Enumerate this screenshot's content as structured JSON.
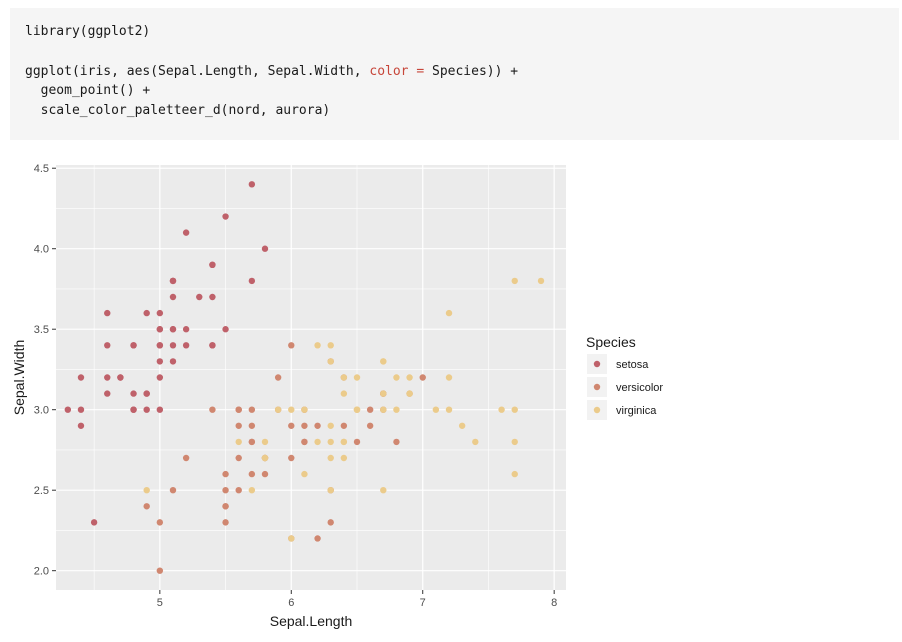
{
  "code": {
    "line1": "library(ggplot2)",
    "line3_pre": "ggplot(iris, aes(Sepal.Length, Sepal.Width, ",
    "line3_color": "color = ",
    "line3_post": "Species)) +",
    "line4": "  geom_point() +",
    "line5": "  scale_color_paletteer_d(nord, aurora)"
  },
  "chart_data": {
    "type": "scatter",
    "xlabel": "Sepal.Length",
    "ylabel": "Sepal.Width",
    "xlim": [
      4.21,
      8.09
    ],
    "ylim": [
      1.88,
      4.52
    ],
    "x_ticks": [
      5,
      6,
      7,
      8
    ],
    "x_tick_labels": [
      "5",
      "6",
      "7",
      "8"
    ],
    "y_ticks": [
      2.0,
      2.5,
      3.0,
      3.5,
      4.0,
      4.5
    ],
    "y_tick_labels": [
      "2.0",
      "2.5",
      "3.0",
      "3.5",
      "4.0",
      "4.5"
    ],
    "grid": true,
    "background": "#ebebeb",
    "legend": {
      "title": "Species",
      "position": "right"
    },
    "series": [
      {
        "name": "setosa",
        "color": "#bf616a",
        "points": [
          [
            5.1,
            3.5
          ],
          [
            4.9,
            3.0
          ],
          [
            4.7,
            3.2
          ],
          [
            4.6,
            3.1
          ],
          [
            5.0,
            3.6
          ],
          [
            5.4,
            3.9
          ],
          [
            4.6,
            3.4
          ],
          [
            5.0,
            3.4
          ],
          [
            4.4,
            2.9
          ],
          [
            4.9,
            3.1
          ],
          [
            5.4,
            3.7
          ],
          [
            4.8,
            3.4
          ],
          [
            4.8,
            3.0
          ],
          [
            4.3,
            3.0
          ],
          [
            5.8,
            4.0
          ],
          [
            5.7,
            4.4
          ],
          [
            5.4,
            3.9
          ],
          [
            5.1,
            3.5
          ],
          [
            5.7,
            3.8
          ],
          [
            5.1,
            3.8
          ],
          [
            5.4,
            3.4
          ],
          [
            5.1,
            3.7
          ],
          [
            4.6,
            3.6
          ],
          [
            5.1,
            3.3
          ],
          [
            4.8,
            3.4
          ],
          [
            5.0,
            3.0
          ],
          [
            5.0,
            3.4
          ],
          [
            5.2,
            3.5
          ],
          [
            5.2,
            3.4
          ],
          [
            4.7,
            3.2
          ],
          [
            4.8,
            3.1
          ],
          [
            5.4,
            3.4
          ],
          [
            5.2,
            4.1
          ],
          [
            5.5,
            4.2
          ],
          [
            4.9,
            3.1
          ],
          [
            5.0,
            3.2
          ],
          [
            5.5,
            3.5
          ],
          [
            4.9,
            3.6
          ],
          [
            4.4,
            3.0
          ],
          [
            5.1,
            3.4
          ],
          [
            5.0,
            3.5
          ],
          [
            4.5,
            2.3
          ],
          [
            4.4,
            3.2
          ],
          [
            5.0,
            3.5
          ],
          [
            5.1,
            3.8
          ],
          [
            4.8,
            3.0
          ],
          [
            5.1,
            3.8
          ],
          [
            4.6,
            3.2
          ],
          [
            5.3,
            3.7
          ],
          [
            5.0,
            3.3
          ]
        ]
      },
      {
        "name": "versicolor",
        "color": "#d08770",
        "points": [
          [
            7.0,
            3.2
          ],
          [
            6.4,
            3.2
          ],
          [
            6.9,
            3.1
          ],
          [
            5.5,
            2.3
          ],
          [
            6.5,
            2.8
          ],
          [
            5.7,
            2.8
          ],
          [
            6.3,
            3.3
          ],
          [
            4.9,
            2.4
          ],
          [
            6.6,
            2.9
          ],
          [
            5.2,
            2.7
          ],
          [
            5.0,
            2.0
          ],
          [
            5.9,
            3.0
          ],
          [
            6.0,
            2.2
          ],
          [
            6.1,
            2.9
          ],
          [
            5.6,
            2.9
          ],
          [
            6.7,
            3.1
          ],
          [
            5.6,
            3.0
          ],
          [
            5.8,
            2.7
          ],
          [
            6.2,
            2.2
          ],
          [
            5.6,
            2.5
          ],
          [
            5.9,
            3.2
          ],
          [
            6.1,
            2.8
          ],
          [
            6.3,
            2.5
          ],
          [
            6.1,
            2.8
          ],
          [
            6.4,
            2.9
          ],
          [
            6.6,
            3.0
          ],
          [
            6.8,
            2.8
          ],
          [
            6.7,
            3.0
          ],
          [
            6.0,
            2.9
          ],
          [
            5.7,
            2.6
          ],
          [
            5.5,
            2.4
          ],
          [
            5.5,
            2.4
          ],
          [
            5.8,
            2.7
          ],
          [
            6.0,
            2.7
          ],
          [
            5.4,
            3.0
          ],
          [
            6.0,
            3.4
          ],
          [
            6.7,
            3.1
          ],
          [
            6.3,
            2.3
          ],
          [
            5.6,
            3.0
          ],
          [
            5.5,
            2.5
          ],
          [
            5.5,
            2.6
          ],
          [
            6.1,
            3.0
          ],
          [
            5.8,
            2.6
          ],
          [
            5.0,
            2.3
          ],
          [
            5.6,
            2.7
          ],
          [
            5.7,
            3.0
          ],
          [
            5.7,
            2.9
          ],
          [
            6.2,
            2.9
          ],
          [
            5.1,
            2.5
          ],
          [
            5.7,
            2.8
          ]
        ]
      },
      {
        "name": "virginica",
        "color": "#ebcb8b",
        "points": [
          [
            6.3,
            3.3
          ],
          [
            5.8,
            2.7
          ],
          [
            7.1,
            3.0
          ],
          [
            6.3,
            2.9
          ],
          [
            6.5,
            3.0
          ],
          [
            7.6,
            3.0
          ],
          [
            4.9,
            2.5
          ],
          [
            7.3,
            2.9
          ],
          [
            6.7,
            2.5
          ],
          [
            7.2,
            3.6
          ],
          [
            6.5,
            3.2
          ],
          [
            6.4,
            2.7
          ],
          [
            6.8,
            3.0
          ],
          [
            5.7,
            2.5
          ],
          [
            5.8,
            2.8
          ],
          [
            6.4,
            3.2
          ],
          [
            6.5,
            3.0
          ],
          [
            7.7,
            3.8
          ],
          [
            7.7,
            2.6
          ],
          [
            6.0,
            2.2
          ],
          [
            6.9,
            3.2
          ],
          [
            5.6,
            2.8
          ],
          [
            7.7,
            2.8
          ],
          [
            6.3,
            2.7
          ],
          [
            6.7,
            3.3
          ],
          [
            7.2,
            3.2
          ],
          [
            6.2,
            2.8
          ],
          [
            6.1,
            3.0
          ],
          [
            6.4,
            2.8
          ],
          [
            7.2,
            3.0
          ],
          [
            7.4,
            2.8
          ],
          [
            7.9,
            3.8
          ],
          [
            6.4,
            2.8
          ],
          [
            6.3,
            2.8
          ],
          [
            6.1,
            2.6
          ],
          [
            7.7,
            3.0
          ],
          [
            6.3,
            3.4
          ],
          [
            6.4,
            3.1
          ],
          [
            6.0,
            3.0
          ],
          [
            6.9,
            3.1
          ],
          [
            6.7,
            3.1
          ],
          [
            6.9,
            3.1
          ],
          [
            5.8,
            2.7
          ],
          [
            6.8,
            3.2
          ],
          [
            6.7,
            3.3
          ],
          [
            6.7,
            3.0
          ],
          [
            6.3,
            2.5
          ],
          [
            6.5,
            3.0
          ],
          [
            6.2,
            3.4
          ],
          [
            5.9,
            3.0
          ]
        ]
      }
    ]
  }
}
